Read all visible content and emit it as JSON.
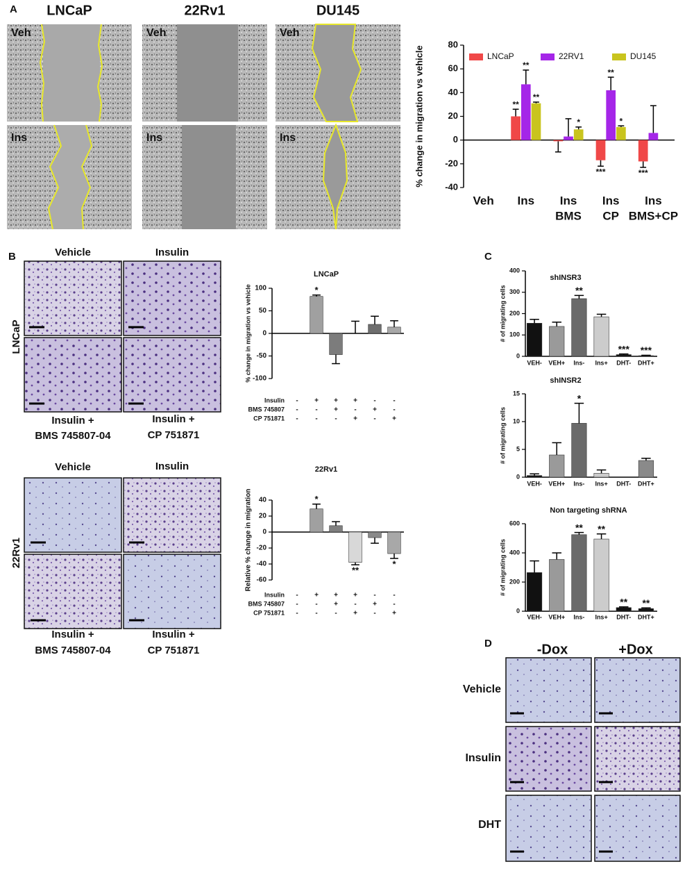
{
  "figure": {
    "A": {
      "letter": "A",
      "columns": [
        "LNCaP",
        "22Rv1",
        "DU145"
      ],
      "rows": [
        "Veh",
        "Ins"
      ]
    },
    "B": {
      "letter": "B",
      "columns": [
        "Vehicle",
        "Insulin"
      ],
      "rows": [
        "LNCaP",
        "22Rv1"
      ],
      "captions": [
        [
          "Insulin +",
          "BMS 745807-04"
        ],
        [
          "Insulin +",
          "CP 751871"
        ]
      ]
    },
    "C": {
      "letter": "C"
    },
    "D": {
      "letter": "D",
      "columns": [
        "-Dox",
        "+Dox"
      ],
      "rows": [
        "Vehicle",
        "Insulin",
        "DHT"
      ]
    }
  },
  "chart_data": [
    {
      "type": "bar",
      "ylabel": "% change in migration vs vehicle",
      "categories": [
        [
          "Veh"
        ],
        [
          "Ins"
        ],
        [
          "Ins",
          "BMS"
        ],
        [
          "Ins",
          "CP"
        ],
        [
          "Ins",
          "BMS+CP"
        ]
      ],
      "series": [
        {
          "name": "LNCaP",
          "color": "#f04848",
          "values": [
            0,
            20,
            -1,
            -17,
            -18
          ],
          "errors": [
            0,
            6,
            9,
            5,
            5
          ],
          "stars": [
            null,
            "**",
            null,
            "***",
            "***"
          ]
        },
        {
          "name": "22RV1",
          "color": "#a526e8",
          "values": [
            0,
            47,
            3,
            42,
            6
          ],
          "errors": [
            0,
            12,
            15,
            11,
            23
          ],
          "stars": [
            null,
            "**",
            null,
            "**",
            null
          ]
        },
        {
          "name": "DU145",
          "color": "#c9c41e",
          "values": [
            0,
            31,
            9,
            11,
            0
          ],
          "errors": [
            0,
            1,
            2,
            1,
            0
          ],
          "stars": [
            null,
            "**",
            "*",
            "*",
            null
          ]
        }
      ],
      "ylim": [
        -40,
        80
      ],
      "yticks": [
        -40,
        -20,
        0,
        20,
        40,
        60,
        80
      ],
      "legend": "top"
    },
    {
      "type": "bar",
      "title": "LNCaP",
      "ylabel": "% change in migration vs vehicle",
      "values": [
        0,
        82,
        -47,
        0,
        20,
        14
      ],
      "errors": [
        0,
        3,
        20,
        27,
        18,
        14
      ],
      "stars": [
        null,
        "*",
        null,
        null,
        null,
        null
      ],
      "colors": [
        "#a0a0a0",
        "#a0a0a0",
        "#7c7c7c",
        "#cfcfcf",
        "#6e6e6e",
        "#a8a8a8"
      ],
      "conditions": [
        {
          "name": "Insulin",
          "signs": [
            "-",
            "+",
            "+",
            "+",
            "-",
            "-"
          ]
        },
        {
          "name": "BMS 745807",
          "signs": [
            "-",
            "-",
            "+",
            "-",
            "+",
            "-"
          ]
        },
        {
          "name": "CP 751871",
          "signs": [
            "-",
            "-",
            "-",
            "+",
            "-",
            "+"
          ]
        }
      ],
      "ylim": [
        -100,
        100
      ],
      "yticks": [
        -100,
        -50,
        0,
        50,
        100
      ]
    },
    {
      "type": "bar",
      "title": "22Rv1",
      "ylabel": "Relative % change in migration",
      "values": [
        0,
        29,
        8,
        -38,
        -7,
        -27
      ],
      "errors": [
        0,
        6,
        5,
        3,
        7,
        6
      ],
      "stars": [
        null,
        "*",
        null,
        "**",
        null,
        "*"
      ],
      "colors": [
        "#a0a0a0",
        "#a0a0a0",
        "#808080",
        "#d8d8d8",
        "#8a8a8a",
        "#a8a8a8"
      ],
      "conditions": [
        {
          "name": "Insulin",
          "signs": [
            "-",
            "+",
            "+",
            "+",
            "-",
            "-"
          ]
        },
        {
          "name": "BMS 745807",
          "signs": [
            "-",
            "-",
            "+",
            "-",
            "+",
            "-"
          ]
        },
        {
          "name": "CP 751871",
          "signs": [
            "-",
            "-",
            "-",
            "+",
            "-",
            "+"
          ]
        }
      ],
      "ylim": [
        -60,
        40
      ],
      "yticks": [
        -60,
        -40,
        -20,
        0,
        20,
        40
      ]
    },
    {
      "type": "bar",
      "title": "shINSR3",
      "ylabel": "# of migrating cells",
      "categories": [
        "VEH-",
        "VEH+",
        "Ins-",
        "Ins+",
        "DHT-",
        "DHT+"
      ],
      "values": [
        155,
        140,
        270,
        185,
        8,
        3
      ],
      "errors": [
        18,
        20,
        15,
        12,
        3,
        2
      ],
      "stars": [
        null,
        null,
        "**",
        null,
        "***",
        "***"
      ],
      "colors": [
        "#111111",
        "#9a9a9a",
        "#6a6a6a",
        "#cccccc",
        "#111111",
        "#111111"
      ],
      "ylim": [
        0,
        400
      ],
      "yticks": [
        0,
        100,
        200,
        300,
        400
      ]
    },
    {
      "type": "bar",
      "title": "shINSR2",
      "ylabel": "# of migrating cells",
      "categories": [
        "VEH-",
        "VEH+",
        "Ins-",
        "Ins+",
        "DHT-",
        "DHT+"
      ],
      "values": [
        0.3,
        4,
        9.7,
        0.7,
        0,
        3
      ],
      "errors": [
        0.3,
        2.2,
        3.6,
        0.6,
        0,
        0.4
      ],
      "stars": [
        null,
        null,
        "*",
        null,
        null,
        null
      ],
      "colors": [
        "#111111",
        "#9a9a9a",
        "#6a6a6a",
        "#cccccc",
        "#111111",
        "#8a8a8a"
      ],
      "ylim": [
        0,
        15
      ],
      "yticks": [
        0,
        5,
        10,
        15
      ]
    },
    {
      "type": "bar",
      "title": "Non targeting shRNA",
      "ylabel": "# of migrating cells",
      "categories": [
        "VEH-",
        "VEH+",
        "Ins-",
        "Ins+",
        "DHT-",
        "DHT+"
      ],
      "values": [
        265,
        355,
        525,
        495,
        25,
        18
      ],
      "errors": [
        80,
        45,
        15,
        35,
        5,
        5
      ],
      "stars": [
        null,
        null,
        "**",
        "**",
        "**",
        "**"
      ],
      "colors": [
        "#111111",
        "#9a9a9a",
        "#6a6a6a",
        "#cccccc",
        "#111111",
        "#111111"
      ],
      "ylim": [
        0,
        600
      ],
      "yticks": [
        0,
        200,
        400,
        600
      ]
    }
  ]
}
